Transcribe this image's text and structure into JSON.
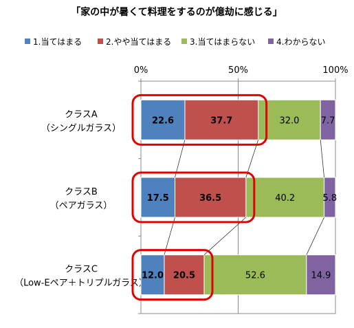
{
  "chart_data": {
    "type": "bar",
    "orientation": "horizontal",
    "stacked": true,
    "percent": true,
    "title": "「家の中が暑くて料理をするのが億劫に感じる」",
    "xlim": [
      0,
      100
    ],
    "x_ticks": [
      "0%",
      "50%",
      "100%"
    ],
    "legend_position": "top",
    "categories": [
      [
        "クラスA",
        "（シングルガラス）"
      ],
      [
        "クラスB",
        "（ペアガラス）"
      ],
      [
        "クラスC",
        "（Low-Eペア＋トリプルガラス）"
      ]
    ],
    "series": [
      {
        "name": "1.当てはまる",
        "color": "#4f81bd",
        "values": [
          22.6,
          17.5,
          12.0
        ],
        "labels": [
          "22.6",
          "17.5",
          "12.0"
        ],
        "bold": true
      },
      {
        "name": "2.やや当てはまる",
        "color": "#c0504d",
        "values": [
          37.7,
          36.5,
          20.5
        ],
        "labels": [
          "37.7",
          "36.5",
          "20.5"
        ],
        "bold": true
      },
      {
        "name": "3.当てはまらない",
        "color": "#9bbb59",
        "values": [
          32.0,
          40.2,
          52.6
        ],
        "labels": [
          "32.0",
          "40.2",
          "52.6"
        ],
        "bold": false
      },
      {
        "name": "4.わからない",
        "color": "#8064a2",
        "values": [
          7.7,
          5.8,
          14.9
        ],
        "labels": [
          "7.7",
          "5.8",
          "14.9"
        ],
        "bold": false
      }
    ],
    "highlight": {
      "series_indices": [
        0,
        1
      ],
      "color": "#e00000"
    },
    "connector_lines": true
  }
}
